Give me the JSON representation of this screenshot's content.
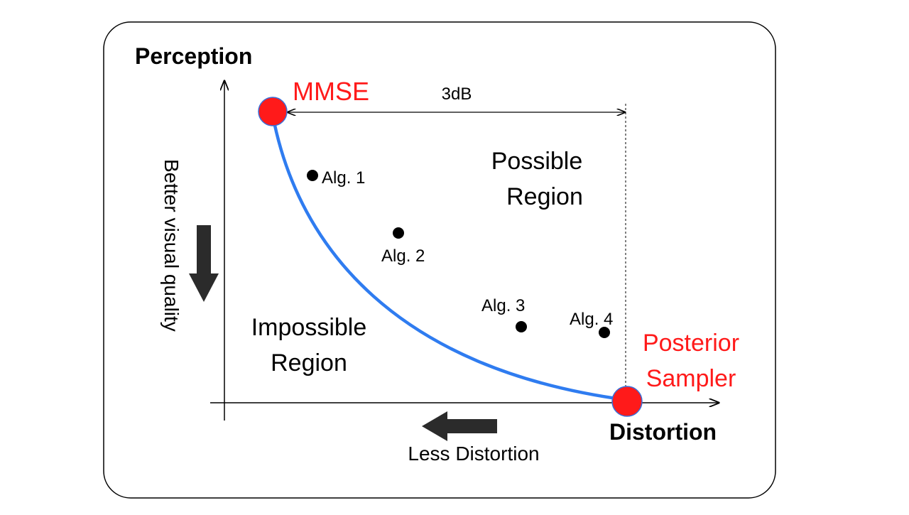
{
  "axes": {
    "y_title": "Perception",
    "x_title": "Distortion"
  },
  "annotations": {
    "mmse": "MMSE",
    "gap": "3dB",
    "posterior_line1": "Posterior",
    "posterior_line2": "Sampler",
    "possible_line1": "Possible",
    "possible_line2": "Region",
    "impossible_line1": "Impossible",
    "impossible_line2": "Region",
    "better_quality": "Better visual quality",
    "less_distortion": "Less Distortion"
  },
  "points": [
    {
      "label": "Alg. 1"
    },
    {
      "label": "Alg. 2"
    },
    {
      "label": "Alg. 3"
    },
    {
      "label": "Alg. 4"
    }
  ],
  "colors": {
    "curve": "#2f7cf0",
    "endpoint": "#ff1a1a",
    "endpoint_label": "#ff1a1a",
    "text": "#000000",
    "arrow": "#2b2b2b"
  }
}
